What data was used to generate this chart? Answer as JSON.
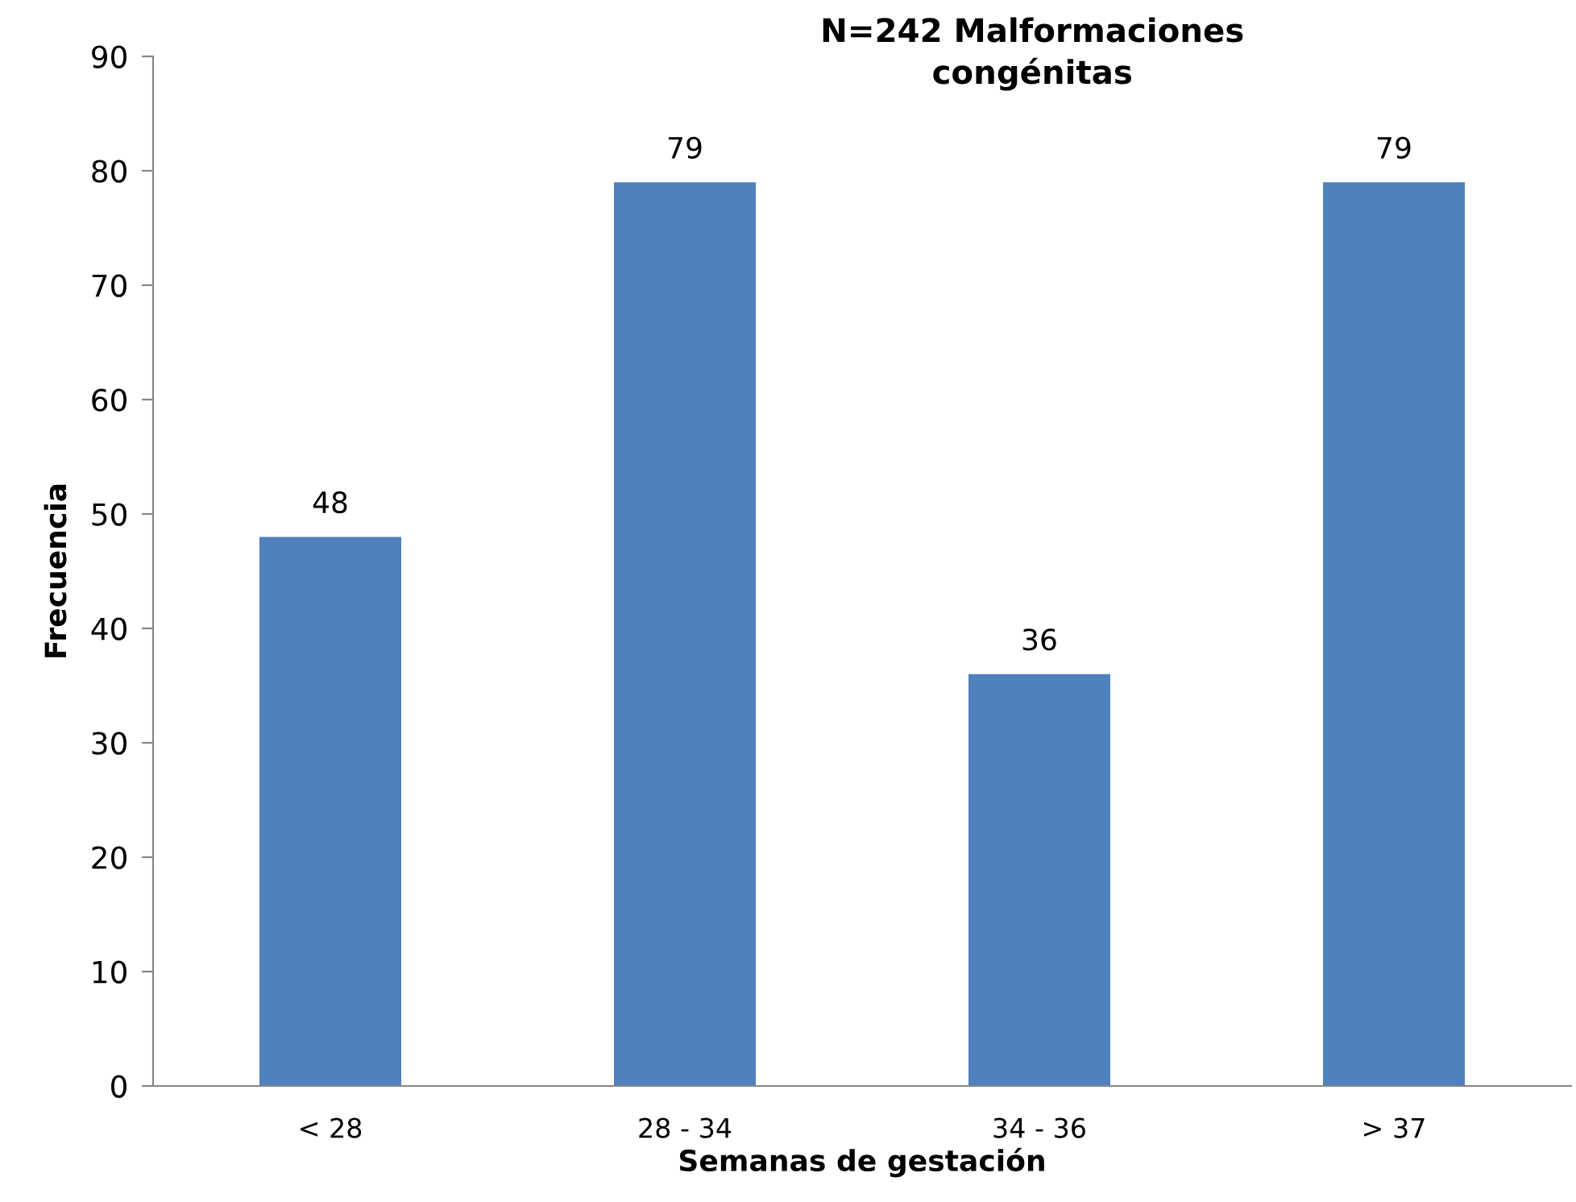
{
  "chart_data": {
    "type": "bar",
    "title": "N=242 Malformaciones\ncongénitas",
    "xlabel": "Semanas de gestación",
    "ylabel": "Frecuencia",
    "categories": [
      "< 28",
      "28 - 34",
      "34 - 36",
      "> 37"
    ],
    "values": [
      48,
      79,
      36,
      79
    ],
    "color": "#4f81bd",
    "ylim": [
      0,
      90
    ],
    "yticks": [
      0,
      10,
      20,
      30,
      40,
      50,
      60,
      70,
      80,
      90
    ],
    "data_labels": true,
    "grid": false,
    "legend": false
  }
}
